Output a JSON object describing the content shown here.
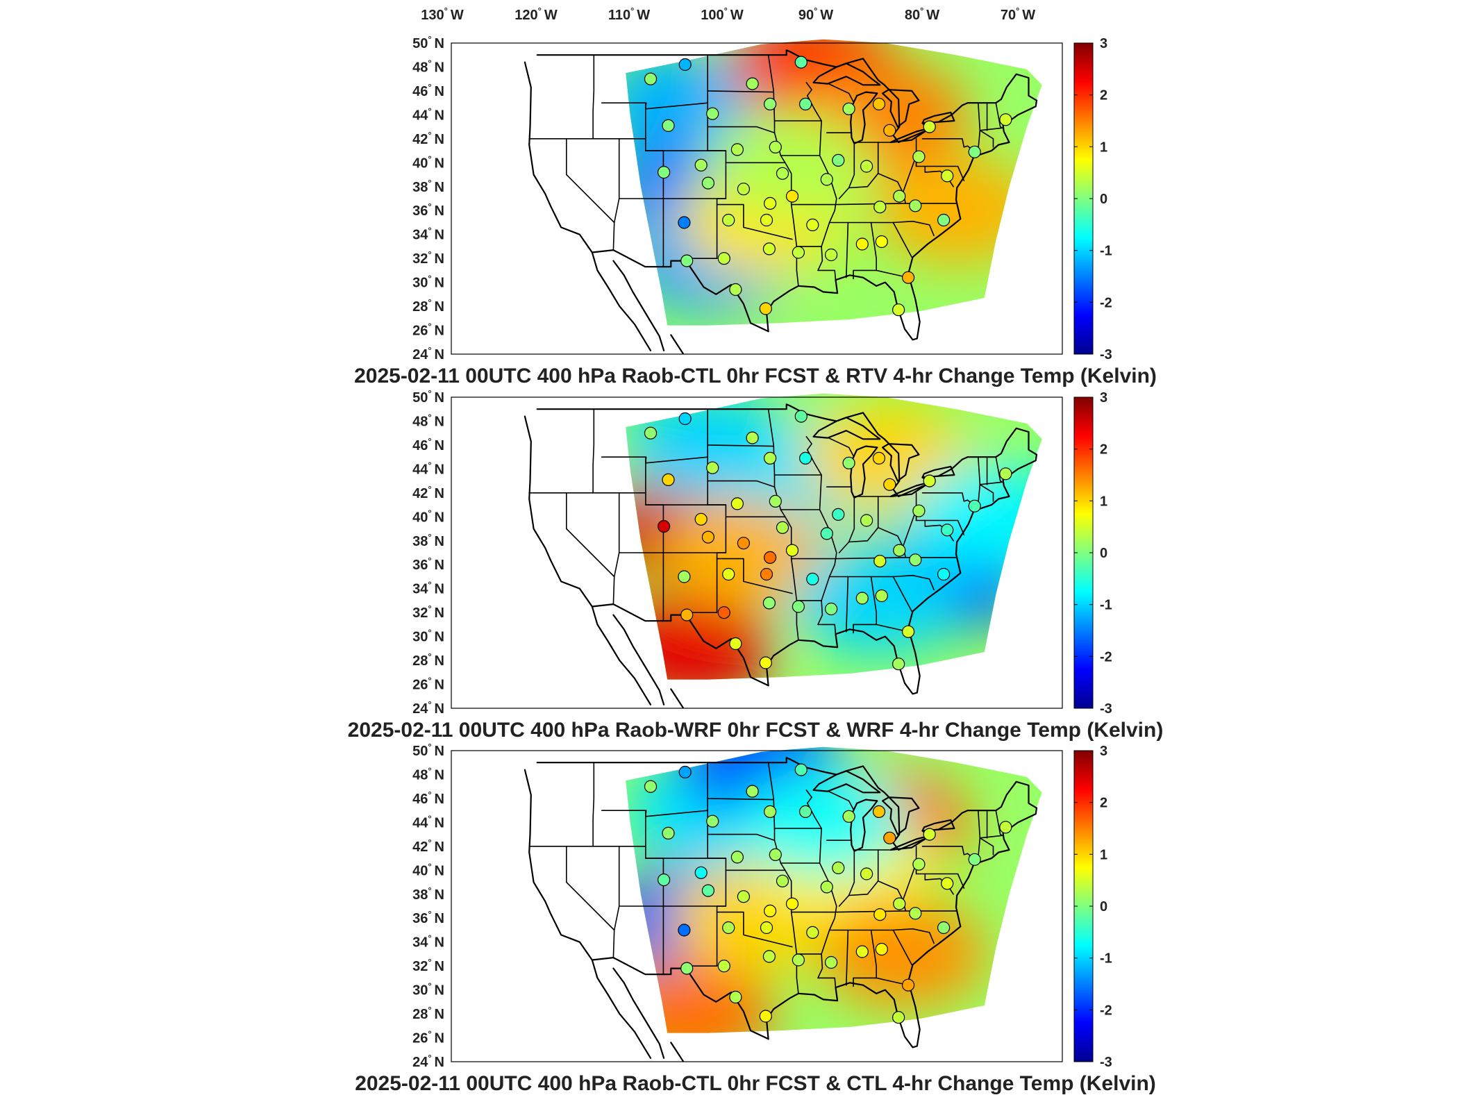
{
  "lon_labels": [
    {
      "deg": "130",
      "hem": "W"
    },
    {
      "deg": "120",
      "hem": "W"
    },
    {
      "deg": "110",
      "hem": "W"
    },
    {
      "deg": "100",
      "hem": "W"
    },
    {
      "deg": "90",
      "hem": "W"
    },
    {
      "deg": "80",
      "hem": "W"
    },
    {
      "deg": "70",
      "hem": "W"
    }
  ],
  "lat_labels": [
    {
      "deg": "50",
      "hem": "N"
    },
    {
      "deg": "48",
      "hem": "N"
    },
    {
      "deg": "46",
      "hem": "N"
    },
    {
      "deg": "44",
      "hem": "N"
    },
    {
      "deg": "42",
      "hem": "N"
    },
    {
      "deg": "40",
      "hem": "N"
    },
    {
      "deg": "38",
      "hem": "N"
    },
    {
      "deg": "36",
      "hem": "N"
    },
    {
      "deg": "34",
      "hem": "N"
    },
    {
      "deg": "32",
      "hem": "N"
    },
    {
      "deg": "30",
      "hem": "N"
    },
    {
      "deg": "28",
      "hem": "N"
    },
    {
      "deg": "26",
      "hem": "N"
    },
    {
      "deg": "24",
      "hem": "N"
    }
  ],
  "colorbar": {
    "ticks": [
      "3",
      "2",
      "1",
      "0",
      "-1",
      "-2",
      "-3"
    ],
    "colors": [
      "#00008f",
      "#0000ff",
      "#0080ff",
      "#00ffff",
      "#80ff80",
      "#ffff00",
      "#ff8000",
      "#ff0000",
      "#800000"
    ]
  },
  "panels": [
    {
      "title": "2025-02-11 00UTC 400 hPa Raob-CTL 0hr FCST & RTV 4-hr Change Temp (Kelvin)",
      "blobs": [
        {
          "lon": -107,
          "lat": 45,
          "v": -1.2
        },
        {
          "lon": -106,
          "lat": 38,
          "v": -1.5
        },
        {
          "lon": -104,
          "lat": 32,
          "v": -1.3
        },
        {
          "lon": -98,
          "lat": 35,
          "v": 0.9
        },
        {
          "lon": -92,
          "lat": 48,
          "v": 2.0
        },
        {
          "lon": -84,
          "lat": 44,
          "v": 1.5
        },
        {
          "lon": -76,
          "lat": 36,
          "v": 1.2
        },
        {
          "lon": -95,
          "lat": 40,
          "v": 0.3
        }
      ],
      "stations": [
        {
          "lon": -110.5,
          "lat": 47,
          "v": 0.1
        },
        {
          "lon": -106.6,
          "lat": 48.2,
          "v": -1.2
        },
        {
          "lon": -99.0,
          "lat": 46.6,
          "v": 0.2
        },
        {
          "lon": -93.5,
          "lat": 48.4,
          "v": -0.2
        },
        {
          "lon": -108.5,
          "lat": 43.1,
          "v": 0.0
        },
        {
          "lon": -103.5,
          "lat": 44.1,
          "v": 0.1
        },
        {
          "lon": -97.0,
          "lat": 44.9,
          "v": 0.1
        },
        {
          "lon": -93.0,
          "lat": 44.9,
          "v": -0.1
        },
        {
          "lon": -88.1,
          "lat": 44.5,
          "v": 0.2
        },
        {
          "lon": -84.7,
          "lat": 44.9,
          "v": 1.1
        },
        {
          "lon": -83.5,
          "lat": 42.7,
          "v": 1.2
        },
        {
          "lon": -79.0,
          "lat": 43.0,
          "v": 0.5
        },
        {
          "lon": -70.4,
          "lat": 43.6,
          "v": 0.5
        },
        {
          "lon": -109.0,
          "lat": 39.2,
          "v": 0.0
        },
        {
          "lon": -104.8,
          "lat": 39.8,
          "v": 0.2
        },
        {
          "lon": -100.7,
          "lat": 41.1,
          "v": 0.3
        },
        {
          "lon": -96.4,
          "lat": 41.3,
          "v": 0.3
        },
        {
          "lon": -89.3,
          "lat": 40.2,
          "v": 0.0
        },
        {
          "lon": -86.1,
          "lat": 39.7,
          "v": 0.4
        },
        {
          "lon": -80.2,
          "lat": 40.5,
          "v": 0.3
        },
        {
          "lon": -73.9,
          "lat": 40.9,
          "v": 0.0
        },
        {
          "lon": -104.0,
          "lat": 38.3,
          "v": 0.1
        },
        {
          "lon": -100.0,
          "lat": 37.8,
          "v": 0.4
        },
        {
          "lon": -95.6,
          "lat": 39.1,
          "v": 0.3
        },
        {
          "lon": -94.5,
          "lat": 37.2,
          "v": 0.9
        },
        {
          "lon": -90.6,
          "lat": 38.6,
          "v": 0.3
        },
        {
          "lon": -84.6,
          "lat": 36.3,
          "v": 0.4
        },
        {
          "lon": -82.4,
          "lat": 37.2,
          "v": 0.3
        },
        {
          "lon": -80.6,
          "lat": 36.4,
          "v": 0.2
        },
        {
          "lon": -77.0,
          "lat": 38.9,
          "v": 0.5
        },
        {
          "lon": -106.7,
          "lat": 35.0,
          "v": -1.5
        },
        {
          "lon": -101.7,
          "lat": 35.2,
          "v": 0.4
        },
        {
          "lon": -97.4,
          "lat": 35.2,
          "v": 0.6
        },
        {
          "lon": -97.0,
          "lat": 36.6,
          "v": 0.6
        },
        {
          "lon": -92.2,
          "lat": 34.8,
          "v": 0.6
        },
        {
          "lon": -86.6,
          "lat": 33.2,
          "v": 0.8
        },
        {
          "lon": -84.4,
          "lat": 33.4,
          "v": 0.7
        },
        {
          "lon": -77.4,
          "lat": 35.2,
          "v": 0.0
        },
        {
          "lon": -106.4,
          "lat": 31.8,
          "v": 0.0
        },
        {
          "lon": -102.2,
          "lat": 32.0,
          "v": 0.4
        },
        {
          "lon": -97.1,
          "lat": 32.8,
          "v": 0.5
        },
        {
          "lon": -93.8,
          "lat": 32.5,
          "v": 0.4
        },
        {
          "lon": -90.1,
          "lat": 32.3,
          "v": 0.4
        },
        {
          "lon": -81.4,
          "lat": 30.4,
          "v": 1.2
        },
        {
          "lon": -100.9,
          "lat": 29.4,
          "v": 0.3
        },
        {
          "lon": -97.5,
          "lat": 27.8,
          "v": 1.0
        },
        {
          "lon": -82.5,
          "lat": 27.7,
          "v": 0.5
        }
      ]
    },
    {
      "title": "2025-02-11 00UTC 400 hPa Raob-WRF 0hr FCST & WRF 4-hr Change Temp (Kelvin)",
      "blobs": [
        {
          "lon": -107,
          "lat": 39,
          "v": 2.5
        },
        {
          "lon": -106,
          "lat": 29,
          "v": 2.4
        },
        {
          "lon": -100,
          "lat": 37,
          "v": 1.2
        },
        {
          "lon": -104,
          "lat": 46,
          "v": -1.0
        },
        {
          "lon": -77,
          "lat": 35,
          "v": -1.8
        },
        {
          "lon": -85,
          "lat": 33,
          "v": -1.0
        },
        {
          "lon": -90,
          "lat": 44,
          "v": -0.9
        },
        {
          "lon": -84,
          "lat": 45,
          "v": 1.0
        },
        {
          "lon": -72,
          "lat": 40,
          "v": -0.8
        }
      ],
      "stations": [
        {
          "lon": -110.5,
          "lat": 47,
          "v": 0.1
        },
        {
          "lon": -106.6,
          "lat": 48.2,
          "v": -1.0
        },
        {
          "lon": -99.0,
          "lat": 46.6,
          "v": 0.3
        },
        {
          "lon": -93.5,
          "lat": 48.4,
          "v": -0.2
        },
        {
          "lon": -108.5,
          "lat": 43.1,
          "v": 1.0
        },
        {
          "lon": -103.5,
          "lat": 44.1,
          "v": 0.3
        },
        {
          "lon": -97.0,
          "lat": 44.9,
          "v": 0.3
        },
        {
          "lon": -93.0,
          "lat": 44.9,
          "v": -0.6
        },
        {
          "lon": -88.1,
          "lat": 44.5,
          "v": 0.1
        },
        {
          "lon": -84.7,
          "lat": 44.9,
          "v": 1.0
        },
        {
          "lon": -83.5,
          "lat": 42.7,
          "v": 1.0
        },
        {
          "lon": -79.0,
          "lat": 43.0,
          "v": 0.5
        },
        {
          "lon": -70.4,
          "lat": 43.6,
          "v": 0.3
        },
        {
          "lon": -109.0,
          "lat": 39.2,
          "v": 2.5
        },
        {
          "lon": -104.8,
          "lat": 39.8,
          "v": 1.0
        },
        {
          "lon": -100.7,
          "lat": 41.1,
          "v": 0.6
        },
        {
          "lon": -96.4,
          "lat": 41.3,
          "v": 0.2
        },
        {
          "lon": -89.3,
          "lat": 40.2,
          "v": -0.4
        },
        {
          "lon": -86.1,
          "lat": 39.7,
          "v": 0.3
        },
        {
          "lon": -80.2,
          "lat": 40.5,
          "v": 0.2
        },
        {
          "lon": -73.9,
          "lat": 40.9,
          "v": -0.3
        },
        {
          "lon": -104.0,
          "lat": 38.3,
          "v": 1.2
        },
        {
          "lon": -100.0,
          "lat": 37.8,
          "v": 1.4
        },
        {
          "lon": -95.6,
          "lat": 39.1,
          "v": 0.3
        },
        {
          "lon": -94.5,
          "lat": 37.2,
          "v": 0.6
        },
        {
          "lon": -90.6,
          "lat": 38.6,
          "v": -0.3
        },
        {
          "lon": -84.6,
          "lat": 36.3,
          "v": 0.5
        },
        {
          "lon": -82.4,
          "lat": 37.2,
          "v": 0.2
        },
        {
          "lon": -80.6,
          "lat": 36.4,
          "v": 0.1
        },
        {
          "lon": -77.0,
          "lat": 38.9,
          "v": -0.4
        },
        {
          "lon": -106.7,
          "lat": 35.0,
          "v": 0.2
        },
        {
          "lon": -101.7,
          "lat": 35.2,
          "v": 0.6
        },
        {
          "lon": -97.4,
          "lat": 35.2,
          "v": 1.5
        },
        {
          "lon": -97.0,
          "lat": 36.6,
          "v": 1.6
        },
        {
          "lon": -92.2,
          "lat": 34.8,
          "v": -0.6
        },
        {
          "lon": -86.6,
          "lat": 33.2,
          "v": 0.2
        },
        {
          "lon": -84.4,
          "lat": 33.4,
          "v": 0.3
        },
        {
          "lon": -77.4,
          "lat": 35.2,
          "v": -0.7
        },
        {
          "lon": -106.4,
          "lat": 31.8,
          "v": 1.2
        },
        {
          "lon": -102.2,
          "lat": 32.0,
          "v": 1.7
        },
        {
          "lon": -97.1,
          "lat": 32.8,
          "v": 0.1
        },
        {
          "lon": -93.8,
          "lat": 32.5,
          "v": 0.0
        },
        {
          "lon": -90.1,
          "lat": 32.3,
          "v": 0.0
        },
        {
          "lon": -81.4,
          "lat": 30.4,
          "v": 0.5
        },
        {
          "lon": -100.9,
          "lat": 29.4,
          "v": 0.6
        },
        {
          "lon": -97.5,
          "lat": 27.8,
          "v": 0.7
        },
        {
          "lon": -82.5,
          "lat": 27.7,
          "v": 0.2
        }
      ]
    },
    {
      "title": "2025-02-11 00UTC 400 hPa Raob-CTL 0hr FCST & CTL 4-hr Change Temp (Kelvin)",
      "blobs": [
        {
          "lon": -106,
          "lat": 36,
          "v": -1.8
        },
        {
          "lon": -104,
          "lat": 45,
          "v": -0.9
        },
        {
          "lon": -98,
          "lat": 49,
          "v": -1.8
        },
        {
          "lon": -106,
          "lat": 28,
          "v": 1.6
        },
        {
          "lon": -99,
          "lat": 36,
          "v": 1.0
        },
        {
          "lon": -84,
          "lat": 44,
          "v": 1.6
        },
        {
          "lon": -88,
          "lat": 40,
          "v": 0.8
        },
        {
          "lon": -82,
          "lat": 33,
          "v": 1.4
        },
        {
          "lon": -91,
          "lat": 44,
          "v": -0.7
        }
      ],
      "stations": [
        {
          "lon": -110.5,
          "lat": 47,
          "v": 0.1
        },
        {
          "lon": -106.6,
          "lat": 48.2,
          "v": -1.3
        },
        {
          "lon": -99.0,
          "lat": 46.6,
          "v": 0.2
        },
        {
          "lon": -93.5,
          "lat": 48.4,
          "v": -0.3
        },
        {
          "lon": -108.5,
          "lat": 43.1,
          "v": 0.1
        },
        {
          "lon": -103.5,
          "lat": 44.1,
          "v": 0.1
        },
        {
          "lon": -97.0,
          "lat": 44.9,
          "v": 0.2
        },
        {
          "lon": -93.0,
          "lat": 44.9,
          "v": -0.2
        },
        {
          "lon": -88.1,
          "lat": 44.5,
          "v": 0.2
        },
        {
          "lon": -84.7,
          "lat": 44.9,
          "v": 1.1
        },
        {
          "lon": -83.5,
          "lat": 42.7,
          "v": 1.3
        },
        {
          "lon": -79.0,
          "lat": 43.0,
          "v": 0.5
        },
        {
          "lon": -70.4,
          "lat": 43.6,
          "v": 0.4
        },
        {
          "lon": -109.0,
          "lat": 39.2,
          "v": -0.2
        },
        {
          "lon": -104.8,
          "lat": 39.8,
          "v": -0.7
        },
        {
          "lon": -100.7,
          "lat": 41.1,
          "v": 0.2
        },
        {
          "lon": -96.4,
          "lat": 41.3,
          "v": 0.2
        },
        {
          "lon": -89.3,
          "lat": 40.2,
          "v": 0.3
        },
        {
          "lon": -86.1,
          "lat": 39.7,
          "v": 0.5
        },
        {
          "lon": -80.2,
          "lat": 40.5,
          "v": 0.3
        },
        {
          "lon": -73.9,
          "lat": 40.9,
          "v": 0.0
        },
        {
          "lon": -104.0,
          "lat": 38.3,
          "v": -0.2
        },
        {
          "lon": -100.0,
          "lat": 37.8,
          "v": 0.4
        },
        {
          "lon": -95.6,
          "lat": 39.1,
          "v": 0.3
        },
        {
          "lon": -94.5,
          "lat": 37.2,
          "v": 0.8
        },
        {
          "lon": -90.6,
          "lat": 38.6,
          "v": 0.3
        },
        {
          "lon": -84.6,
          "lat": 36.3,
          "v": 0.9
        },
        {
          "lon": -82.4,
          "lat": 37.2,
          "v": 0.4
        },
        {
          "lon": -80.6,
          "lat": 36.4,
          "v": 0.3
        },
        {
          "lon": -77.0,
          "lat": 38.9,
          "v": 0.6
        },
        {
          "lon": -106.7,
          "lat": 35.0,
          "v": -1.6
        },
        {
          "lon": -101.7,
          "lat": 35.2,
          "v": 0.3
        },
        {
          "lon": -97.4,
          "lat": 35.2,
          "v": 0.6
        },
        {
          "lon": -97.0,
          "lat": 36.6,
          "v": 0.8
        },
        {
          "lon": -92.2,
          "lat": 34.8,
          "v": 0.5
        },
        {
          "lon": -86.6,
          "lat": 33.2,
          "v": 0.6
        },
        {
          "lon": -84.4,
          "lat": 33.4,
          "v": 0.8
        },
        {
          "lon": -77.4,
          "lat": 35.2,
          "v": 0.1
        },
        {
          "lon": -106.4,
          "lat": 31.8,
          "v": 0.1
        },
        {
          "lon": -102.2,
          "lat": 32.0,
          "v": 0.4
        },
        {
          "lon": -97.1,
          "lat": 32.8,
          "v": 0.4
        },
        {
          "lon": -93.8,
          "lat": 32.5,
          "v": 0.3
        },
        {
          "lon": -90.1,
          "lat": 32.3,
          "v": 0.3
        },
        {
          "lon": -81.4,
          "lat": 30.4,
          "v": 1.3
        },
        {
          "lon": -100.9,
          "lat": 29.4,
          "v": 0.3
        },
        {
          "lon": -97.5,
          "lat": 27.8,
          "v": 0.8
        },
        {
          "lon": -82.5,
          "lat": 27.7,
          "v": 0.4
        }
      ]
    }
  ]
}
